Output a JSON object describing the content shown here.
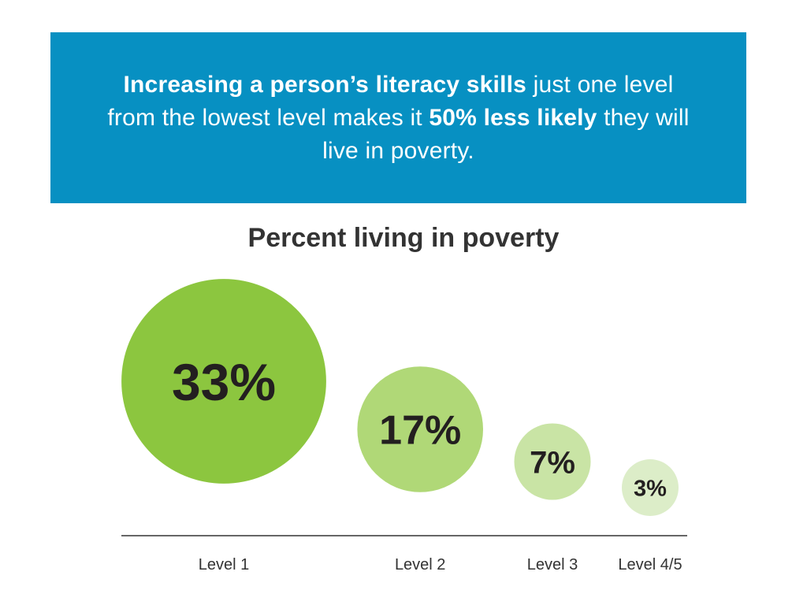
{
  "banner": {
    "background_color": "#0790c2",
    "lines": [
      [
        "Increasing a person’s literacy skills",
        " just one level"
      ],
      [
        "from the lowest level makes it ",
        "50% less likely",
        " they will"
      ],
      [
        "live in poverty."
      ]
    ]
  },
  "chart_data": {
    "type": "scatter",
    "title": "Percent living in poverty",
    "categories": [
      "Level 1",
      "Level 2",
      "Level 3",
      "Level 4/5"
    ],
    "values": [
      33,
      17,
      7,
      3
    ],
    "data_labels": [
      "33%",
      "17%",
      "7%",
      "3%"
    ],
    "colors": [
      "#8cc63f",
      "#b0d877",
      "#c9e4a5",
      "#dcedc8"
    ],
    "grid": false
  }
}
